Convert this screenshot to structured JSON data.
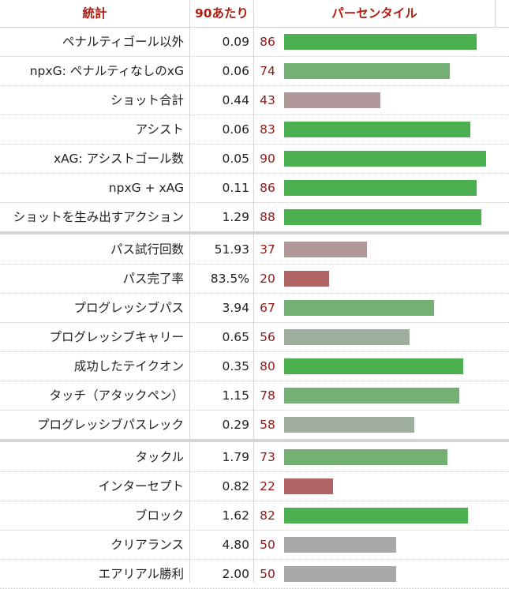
{
  "header": {
    "stat": "統計",
    "per90": "90あたり",
    "percentile": "パーセンタイル"
  },
  "colors": {
    "header_text": "#b01e12",
    "percentile_text": "#8b1a1a",
    "bar_high": "#4caf50",
    "bar_midhigh": "#74b074",
    "bar_mid": "#9fae9f",
    "bar_neutral": "#a9a9a9",
    "bar_midlow": "#b09898",
    "bar_low": "#b06464"
  },
  "chart_data": {
    "type": "bar",
    "orientation": "horizontal",
    "x_label": "パーセンタイル",
    "xlim": [
      0,
      100
    ],
    "groups": [
      {
        "rows": [
          {
            "stat": "ペナルティゴール以外",
            "per90": "0.09",
            "percentile": 86
          },
          {
            "stat": "npxG: ペナルティなしのxG",
            "per90": "0.06",
            "percentile": 74
          },
          {
            "stat": "ショット合計",
            "per90": "0.44",
            "percentile": 43
          },
          {
            "stat": "アシスト",
            "per90": "0.06",
            "percentile": 83
          },
          {
            "stat": "xAG: アシストゴール数",
            "per90": "0.05",
            "percentile": 90
          },
          {
            "stat": "npxG + xAG",
            "per90": "0.11",
            "percentile": 86
          },
          {
            "stat": "ショットを生み出すアクション",
            "per90": "1.29",
            "percentile": 88
          }
        ]
      },
      {
        "rows": [
          {
            "stat": "パス試行回数",
            "per90": "51.93",
            "percentile": 37
          },
          {
            "stat": "パス完了率",
            "per90": "83.5%",
            "percentile": 20
          },
          {
            "stat": "プログレッシブパス",
            "per90": "3.94",
            "percentile": 67
          },
          {
            "stat": "プログレッシブキャリー",
            "per90": "0.65",
            "percentile": 56
          },
          {
            "stat": "成功したテイクオン",
            "per90": "0.35",
            "percentile": 80
          },
          {
            "stat": "タッチ（アタックペン）",
            "per90": "1.15",
            "percentile": 78
          },
          {
            "stat": "プログレッシブパスレック",
            "per90": "0.29",
            "percentile": 58
          }
        ]
      },
      {
        "rows": [
          {
            "stat": "タックル",
            "per90": "1.79",
            "percentile": 73
          },
          {
            "stat": "インターセプト",
            "per90": "0.82",
            "percentile": 22
          },
          {
            "stat": "ブロック",
            "per90": "1.62",
            "percentile": 82
          },
          {
            "stat": "クリアランス",
            "per90": "4.80",
            "percentile": 50
          },
          {
            "stat": "エアリアル勝利",
            "per90": "2.00",
            "percentile": 50
          }
        ]
      }
    ]
  }
}
